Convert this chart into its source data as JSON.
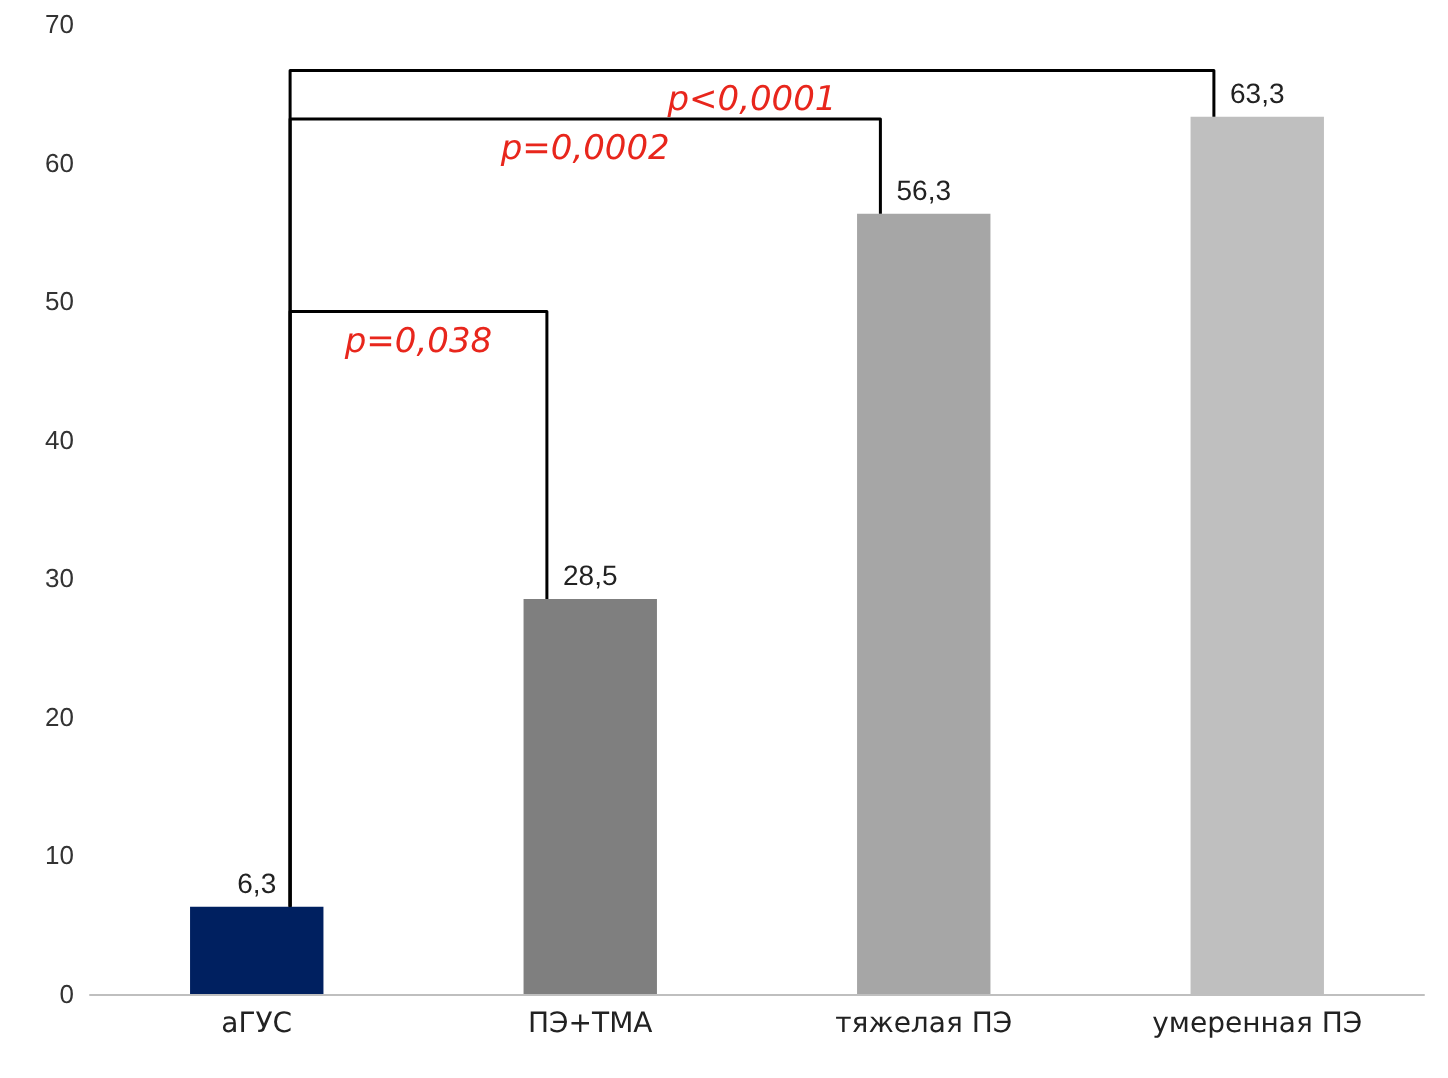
{
  "chart_data": {
    "type": "bar",
    "categories": [
      "аГУС",
      "ПЭ+ТМА",
      "тяжелая ПЭ",
      "умеренная ПЭ"
    ],
    "values": [
      6.3,
      28.5,
      56.3,
      63.3
    ],
    "colors": [
      "#002060",
      "#7f7f7f",
      "#a6a6a6",
      "#bfbfbf"
    ],
    "value_labels": [
      "6,3",
      "28,5",
      "56,3",
      "63,3"
    ],
    "ylim": [
      0,
      70
    ],
    "yticks": [
      0,
      10,
      20,
      30,
      40,
      50,
      60,
      70
    ],
    "grid": false,
    "annotations": [
      "p=0,038",
      "p=0,0002",
      "p<0,0001"
    ]
  }
}
